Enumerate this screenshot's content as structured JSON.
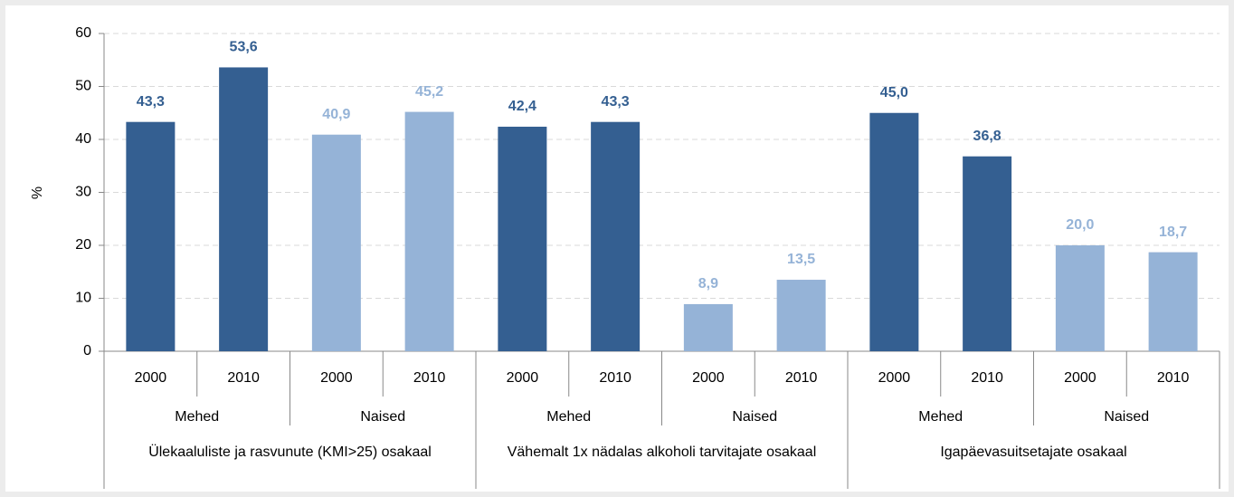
{
  "chart_data": {
    "type": "bar",
    "ylabel": "%",
    "categories": [
      "2000",
      "2010",
      "2000",
      "2010",
      "2000",
      "2010",
      "2000",
      "2010",
      "2000",
      "2010",
      "2000",
      "2010"
    ],
    "values": [
      43.3,
      53.6,
      40.9,
      45.2,
      42.4,
      43.3,
      8.9,
      13.5,
      45.0,
      36.8,
      20.0,
      18.7
    ],
    "value_labels": [
      "43,3",
      "53,6",
      "40,9",
      "45,2",
      "42,4",
      "43,3",
      "8,9",
      "13,5",
      "45,0",
      "36,8",
      "20,0",
      "18,7"
    ],
    "subgroups": [
      {
        "label": "Mehed",
        "color": "#345f91"
      },
      {
        "label": "Naised",
        "color": "#95b3d7"
      },
      {
        "label": "Mehed",
        "color": "#345f91"
      },
      {
        "label": "Naised",
        "color": "#95b3d7"
      },
      {
        "label": "Mehed",
        "color": "#345f91"
      },
      {
        "label": "Naised",
        "color": "#95b3d7"
      }
    ],
    "groups": [
      "Ülekaaluliste ja rasvunute (KMI>25) osakaal",
      "Vähemalt 1x nädalas alkoholi tarvitajate osakaal",
      "Igapäevasuitsetajate osakaal"
    ],
    "ylim": [
      0,
      60
    ],
    "yticks": [
      0,
      10,
      20,
      30,
      40,
      50,
      60
    ],
    "grid": true
  }
}
